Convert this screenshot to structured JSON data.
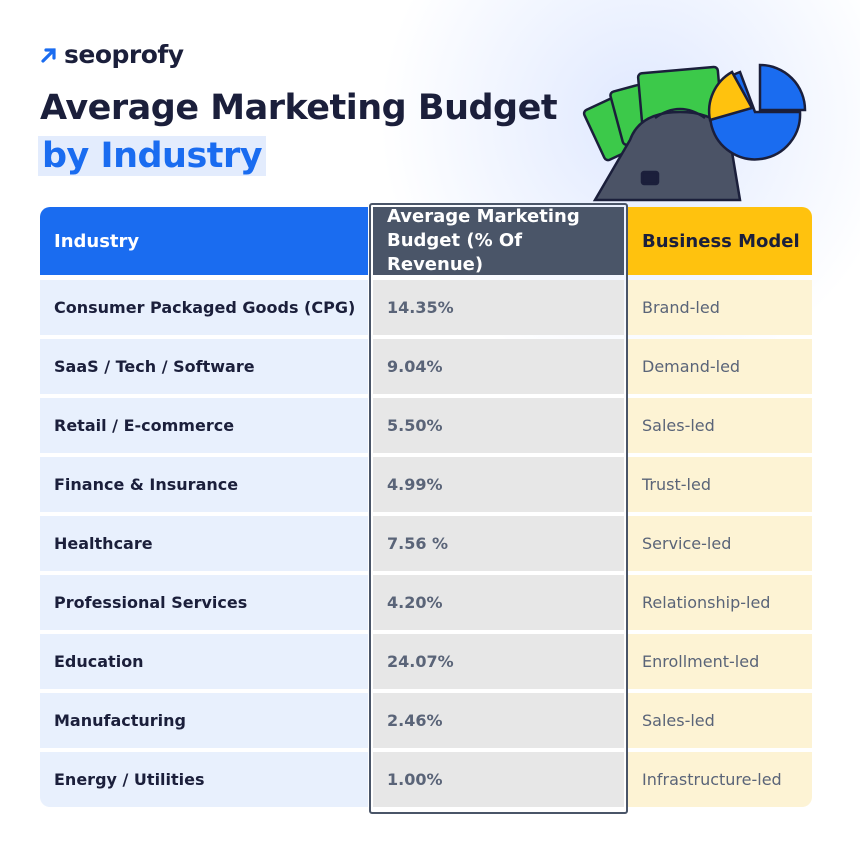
{
  "brand": "seoprofy",
  "title": {
    "line1": "Average Marketing Budget",
    "line2": "by Industry"
  },
  "table": {
    "headers": [
      "Industry",
      "Average Marketing Budget (% Of Revenue)",
      "Business Model"
    ],
    "rows": [
      [
        "Consumer Packaged Goods (CPG)",
        "14.35%",
        "Brand-led"
      ],
      [
        "SaaS / Tech / Software",
        "9.04%",
        "Demand-led"
      ],
      [
        "Retail / E-commerce",
        "5.50%",
        "Sales-led"
      ],
      [
        "Finance & Insurance",
        "4.99%",
        "Trust-led"
      ],
      [
        "Healthcare",
        "7.56 %",
        "Service-led"
      ],
      [
        "Professional Services",
        "4.20%",
        "Relationship-led"
      ],
      [
        "Education",
        "24.07%",
        "Enrollment-led"
      ],
      [
        "Manufacturing",
        "2.46%",
        "Sales-led"
      ],
      [
        "Energy / Utilities",
        "1.00%",
        "Infrastructure-led"
      ]
    ]
  }
}
